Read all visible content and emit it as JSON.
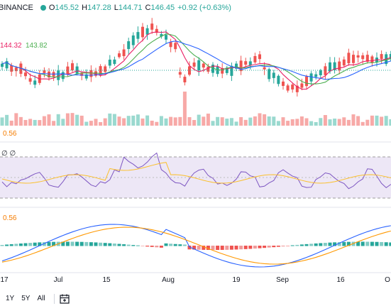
{
  "header": {
    "exchange": "BINANCE",
    "ohlc": {
      "o_label": "O",
      "o": "145.52",
      "h_label": "H",
      "h": "147.28",
      "l_label": "L",
      "l": "144.71",
      "c_label": "C",
      "c": "146.45",
      "change": "+0.92 (+0.63%)"
    }
  },
  "ma_legend": {
    "value1": "144.32",
    "value2": "143.82"
  },
  "volume_legend": {
    "value": "0.56"
  },
  "rsi_legend": {
    "values": "∅ ∅"
  },
  "macd_legend": {
    "value": "0.56"
  },
  "x_axis": {
    "labels": [
      "17",
      "Jul",
      "15",
      "Aug",
      "19",
      "Sep",
      "16",
      "O"
    ]
  },
  "bottom_bar": {
    "range_1y": "1Y",
    "range_5y": "5Y",
    "range_all": "All",
    "calendar_icon": "calendar-icon"
  },
  "colors": {
    "up": "#26a69a",
    "down": "#ef5350",
    "ma_fast": "#e91e63",
    "ma_slow": "#4caf50",
    "ma_mid": "#2962ff",
    "rsi": "#7e57c2",
    "rsi_band": "#ede7f6",
    "macd_line": "#2962ff",
    "signal_line": "#ff9800",
    "vol_up": "#9ad9cf",
    "vol_down": "#f7a9a7"
  }
}
